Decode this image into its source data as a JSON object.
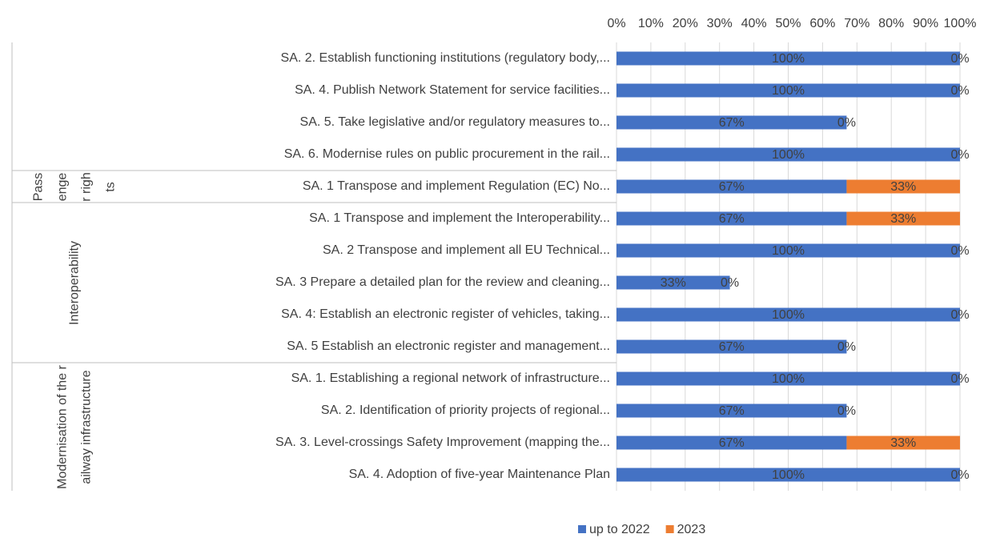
{
  "chart_data": {
    "type": "stacked-bar-horizontal",
    "groups": [
      {
        "categories": [
          "SA. 2. Establish functioning institutions (regulatory body,...",
          "SA. 4. Publish Network Statement for service facilities...",
          "SA. 5. Take legislative and/or regulatory measures to...",
          "SA. 6. Modernise rules on public procurement in the rail..."
        ]
      },
      {
        "name": "Passenger rights",
        "categories": [
          "SA. 1 Transpose and implement Regulation (EC) No..."
        ]
      },
      {
        "name": "Interoperability",
        "categories": [
          "SA. 1 Transpose and implement the Interoperability...",
          "SA. 2 Transpose and implement all EU Technical...",
          "SA. 3 Prepare a detailed plan for the review and cleaning...",
          "SA. 4: Establish an electronic register of vehicles, taking...",
          "SA. 5 Establish an electronic register and management..."
        ]
      },
      {
        "name": "Modernisation of the railway infrastructure",
        "categories": [
          "SA. 1. Establishing a regional network of infrastructure...",
          "SA. 2. Identification of priority projects of regional...",
          "SA. 3. Level-crossings Safety Improvement (mapping the...",
          "SA. 4. Adoption of five-year Maintenance Plan"
        ]
      }
    ],
    "series": [
      {
        "name": "up to 2022",
        "color": "#4472c4",
        "values": [
          100,
          100,
          67,
          100,
          67,
          67,
          100,
          33,
          100,
          67,
          100,
          67,
          67,
          100
        ],
        "value_labels": [
          "100%",
          "100%",
          "67%",
          "100%",
          "67%",
          "67%",
          "100%",
          "33%",
          "100%",
          "67%",
          "100%",
          "67%",
          "67%",
          "100%"
        ]
      },
      {
        "name": "2023",
        "color": "#ed7d31",
        "values": [
          0,
          0,
          0,
          0,
          33,
          33,
          0,
          0,
          0,
          0,
          0,
          0,
          33,
          0
        ],
        "value_labels": [
          "0%",
          "0%",
          "0%",
          "0%",
          "33%",
          "33%",
          "0%",
          "0%",
          "0%",
          "0%",
          "0%",
          "0%",
          "33%",
          "0%"
        ]
      }
    ],
    "xlim": [
      0,
      100
    ],
    "xticks": [
      {
        "value": 0,
        "label": "0%"
      },
      {
        "value": 10,
        "label": "10%"
      },
      {
        "value": 20,
        "label": "20%"
      },
      {
        "value": 30,
        "label": "30%"
      },
      {
        "value": 40,
        "label": "40%"
      },
      {
        "value": 50,
        "label": "50%"
      },
      {
        "value": 60,
        "label": "60%"
      },
      {
        "value": 70,
        "label": "70%"
      },
      {
        "value": 80,
        "label": "80%"
      },
      {
        "value": 90,
        "label": "90%"
      },
      {
        "value": 100,
        "label": "100%"
      }
    ],
    "grid": true,
    "legend": "bottom"
  }
}
